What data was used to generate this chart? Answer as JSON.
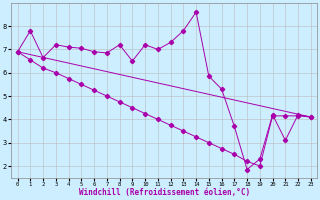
{
  "xlabel": "Windchill (Refroidissement éolien,°C)",
  "background_color": "#cceeff",
  "line_color": "#aa00aa",
  "grid_color": "#bbbbbb",
  "xlim": [
    -0.5,
    23.5
  ],
  "ylim": [
    1.5,
    9.0
  ],
  "yticks": [
    2,
    3,
    4,
    5,
    6,
    7,
    8
  ],
  "xticks": [
    0,
    1,
    2,
    3,
    4,
    5,
    6,
    7,
    8,
    9,
    10,
    11,
    12,
    13,
    14,
    15,
    16,
    17,
    18,
    19,
    20,
    21,
    22,
    23
  ],
  "series1_x": [
    0,
    1,
    2,
    3,
    4,
    5,
    6,
    7,
    8,
    9,
    10,
    11,
    12,
    13,
    14,
    15,
    16,
    17,
    18,
    19,
    20,
    21,
    22,
    23
  ],
  "series1_y": [
    6.9,
    7.8,
    6.65,
    7.2,
    7.1,
    7.05,
    6.9,
    6.85,
    7.2,
    6.5,
    7.2,
    7.0,
    7.3,
    7.8,
    8.6,
    5.85,
    5.3,
    3.7,
    1.85,
    2.3,
    4.2,
    3.1,
    4.2,
    4.1
  ],
  "series2_x": [
    0,
    23
  ],
  "series2_y": [
    6.9,
    4.1
  ],
  "series3_x": [
    0,
    1,
    2,
    3,
    4,
    5,
    6,
    7,
    8,
    9,
    10,
    11,
    12,
    13,
    14,
    15,
    16,
    17,
    18,
    19,
    20,
    21,
    22,
    23
  ],
  "series3_y": [
    6.9,
    6.55,
    6.2,
    6.0,
    5.75,
    5.5,
    5.25,
    5.0,
    4.75,
    4.5,
    4.25,
    4.0,
    3.75,
    3.5,
    3.25,
    3.0,
    2.75,
    2.5,
    2.2,
    2.0,
    4.15,
    4.15,
    4.15,
    4.1
  ]
}
